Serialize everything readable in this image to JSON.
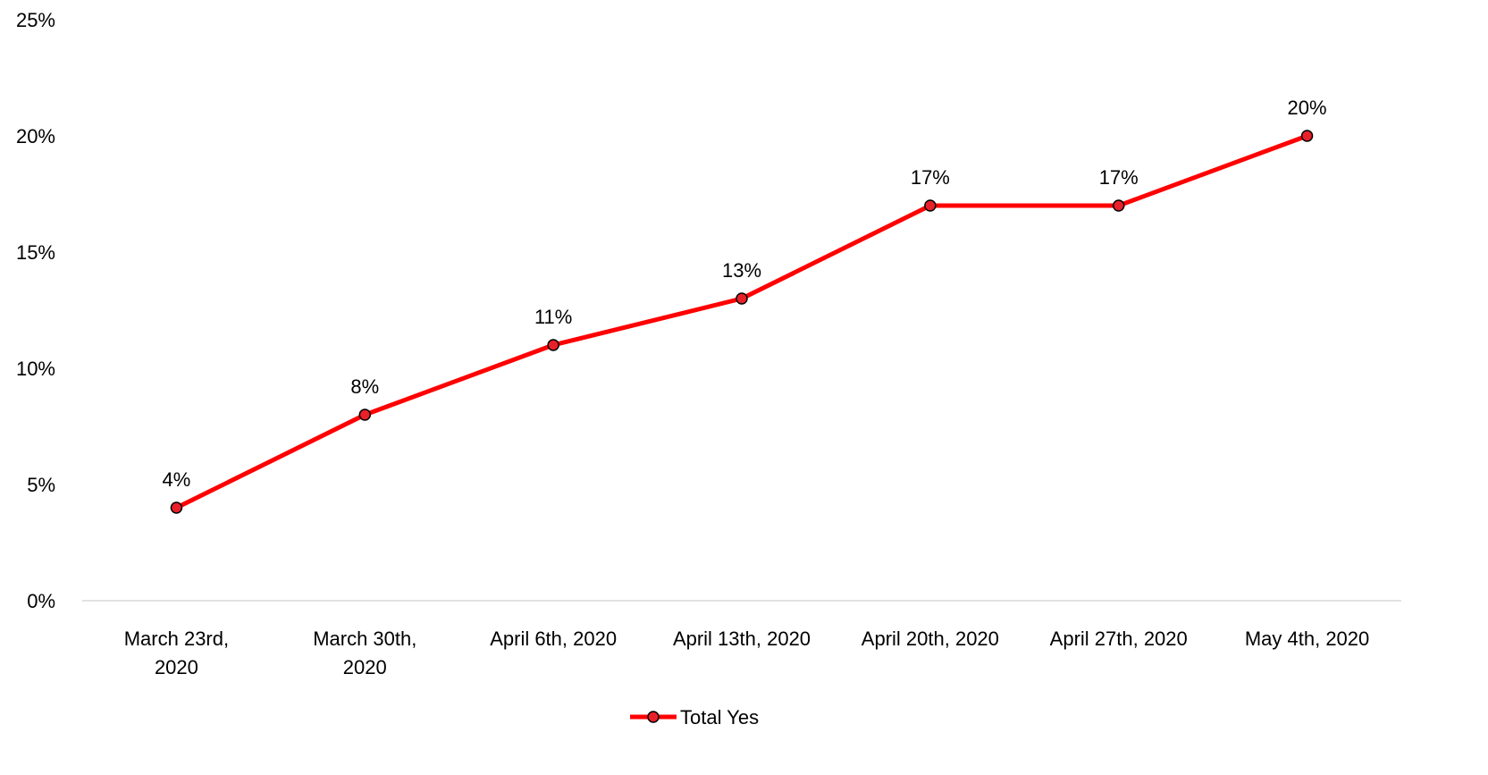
{
  "chart_data": {
    "type": "line",
    "categories": [
      [
        "March 23rd,",
        "2020"
      ],
      [
        "March 30th,",
        "2020"
      ],
      [
        "April 6th, 2020"
      ],
      [
        "April 13th, 2020"
      ],
      [
        "April 20th, 2020"
      ],
      [
        "April 27th, 2020"
      ],
      [
        "May 4th, 2020"
      ]
    ],
    "series": [
      {
        "name": "Total Yes",
        "values": [
          4,
          8,
          11,
          13,
          17,
          17,
          20
        ],
        "data_labels": [
          "4%",
          "8%",
          "11%",
          "13%",
          "17%",
          "17%",
          "20%"
        ],
        "color": "#ff0000",
        "marker_color": "#e8202a"
      }
    ],
    "ylim": [
      0,
      25
    ],
    "yticks": [
      0,
      5,
      10,
      15,
      20,
      25
    ],
    "ytick_labels": [
      "0%",
      "5%",
      "10%",
      "15%",
      "20%",
      "25%"
    ],
    "grid": false,
    "legend_position": "bottom",
    "axis_color": "#d9d9d9"
  }
}
